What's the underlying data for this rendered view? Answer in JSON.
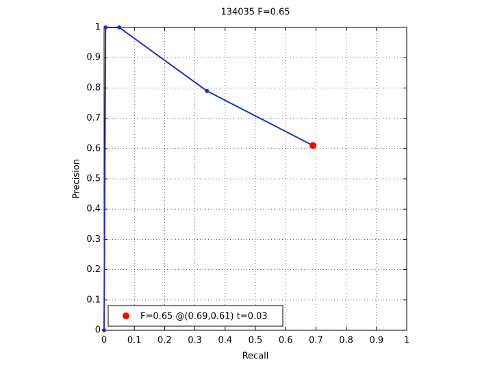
{
  "chart_data": {
    "type": "line",
    "title": "134035 F=0.65",
    "x_label": "Recall",
    "y_label": "Precision",
    "series": [
      {
        "color": "#1a2fbf",
        "x": [
          0,
          0.005,
          0.05,
          0.34,
          0.69
        ],
        "values": [
          0,
          1,
          1,
          0.79,
          0.61
        ]
      },
      {
        "name": "F=0.65 @(0.69,0.61) t=0.03",
        "color": "#ff0000",
        "x": [
          0.69
        ],
        "values": [
          0.61
        ]
      }
    ],
    "xlim": [
      0,
      1
    ],
    "ylim": [
      0,
      1
    ],
    "xticks": [
      0,
      0.1,
      0.2,
      0.3,
      0.4,
      0.5,
      0.6,
      0.7,
      0.8,
      0.9,
      1
    ],
    "yticks": [
      0,
      0.1,
      0.2,
      0.3,
      0.4,
      0.5,
      0.6,
      0.7,
      0.8,
      0.9,
      1
    ],
    "grid": true,
    "legend": "bottom-left"
  }
}
